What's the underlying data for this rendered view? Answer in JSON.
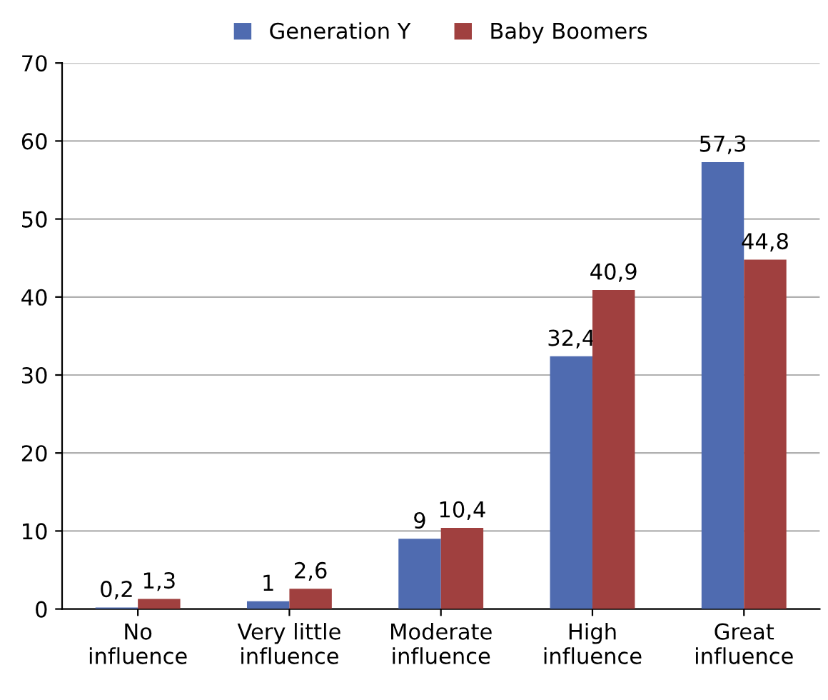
{
  "chart_data": {
    "type": "bar",
    "categories": [
      "No\ninfluence",
      "Very little\ninfluence",
      "Moderate\ninfluence",
      "High\ninfluence",
      "Great\ninfluence"
    ],
    "series": [
      {
        "name": "Generation Y",
        "color": "#4f6bb0",
        "values": [
          0.2,
          1,
          9,
          32.4,
          57.3
        ],
        "value_labels": [
          "0,2",
          "1",
          "9",
          "32,4",
          "57,3"
        ]
      },
      {
        "name": "Baby Boomers",
        "color": "#a0403f",
        "values": [
          1.3,
          2.6,
          10.4,
          40.9,
          44.8
        ],
        "value_labels": [
          "1,3",
          "2,6",
          "10,4",
          "40,9",
          "44,8"
        ]
      }
    ],
    "ylim": [
      0,
      70
    ],
    "yticks": [
      0,
      10,
      20,
      30,
      40,
      50,
      60,
      70
    ],
    "grid": "y",
    "legend": "top"
  }
}
